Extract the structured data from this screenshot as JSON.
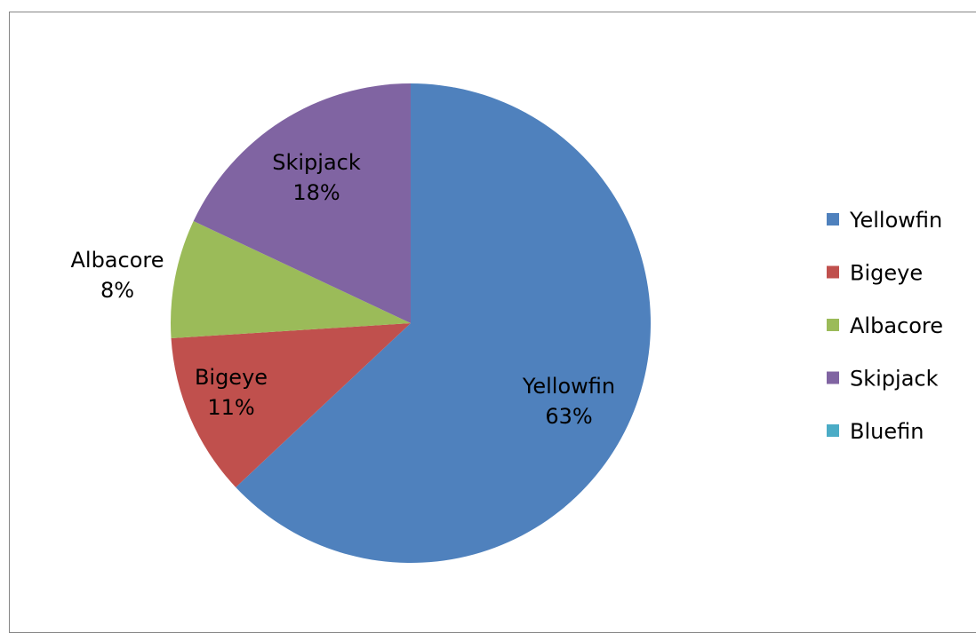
{
  "chart_data": {
    "type": "pie",
    "categories": [
      "Yellowfin",
      "Bigeye",
      "Albacore",
      "Skipjack",
      "Bluefin"
    ],
    "values": [
      63,
      11,
      8,
      18,
      0
    ],
    "data_labels": [
      {
        "name": "Yellowfin",
        "percent": "63%"
      },
      {
        "name": "Bigeye",
        "percent": "11%"
      },
      {
        "name": "Albacore",
        "percent": "8%"
      },
      {
        "name": "Skipjack",
        "percent": "18%"
      },
      {
        "name": "Bluefin",
        "percent": ""
      }
    ],
    "colors": [
      "#4F81BD",
      "#C0504D",
      "#9BBB59",
      "#8064A2",
      "#4BACC6"
    ],
    "legend_position": "right",
    "start_angle": "12 o'clock",
    "direction": "clockwise"
  }
}
